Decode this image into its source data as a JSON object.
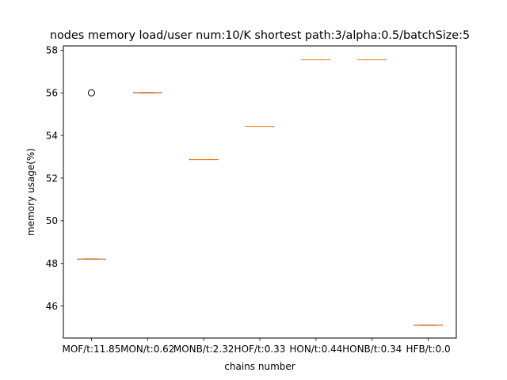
{
  "chart_data": {
    "type": "box",
    "title": "nodes memory load/user num:10/K shortest path:3/alpha:0.5/batchSize:5",
    "xlabel": "chains number",
    "ylabel": "memory usage(%)",
    "ylim": [
      44.5,
      58.2
    ],
    "yticks": [
      46,
      48,
      50,
      52,
      54,
      56,
      58
    ],
    "categories": [
      "MOF/t:11.85",
      "MON/t:0.62",
      "MONB/t:2.32",
      "HOF/t:0.33",
      "HON/t:0.44",
      "HONB/t:0.34",
      "HFB/t:0.0"
    ],
    "series": [
      {
        "median": 48.2,
        "q1": 48.2,
        "q3": 48.2,
        "whisker_low": 48.2,
        "whisker_high": 48.2,
        "outliers": [
          56.0
        ]
      },
      {
        "median": 56.0,
        "q1": 56.0,
        "q3": 56.0,
        "whisker_low": 56.0,
        "whisker_high": 56.0,
        "outliers": []
      },
      {
        "median": 52.87,
        "q1": 52.87,
        "q3": 52.87,
        "whisker_low": 52.87,
        "whisker_high": 52.87,
        "outliers": []
      },
      {
        "median": 54.43,
        "q1": 54.43,
        "q3": 54.43,
        "whisker_low": 54.43,
        "whisker_high": 54.43,
        "outliers": []
      },
      {
        "median": 57.55,
        "q1": 57.55,
        "q3": 57.55,
        "whisker_low": 57.55,
        "whisker_high": 57.55,
        "outliers": []
      },
      {
        "median": 57.55,
        "q1": 57.55,
        "q3": 57.55,
        "whisker_low": 57.55,
        "whisker_high": 57.55,
        "outliers": []
      },
      {
        "median": 45.1,
        "q1": 45.1,
        "q3": 45.1,
        "whisker_low": 45.1,
        "whisker_high": 45.1,
        "outliers": []
      }
    ],
    "grid": false,
    "legend": "none",
    "colors": {
      "median": "#ff7f0e",
      "box": "#000000",
      "outlier": "#000000"
    }
  }
}
